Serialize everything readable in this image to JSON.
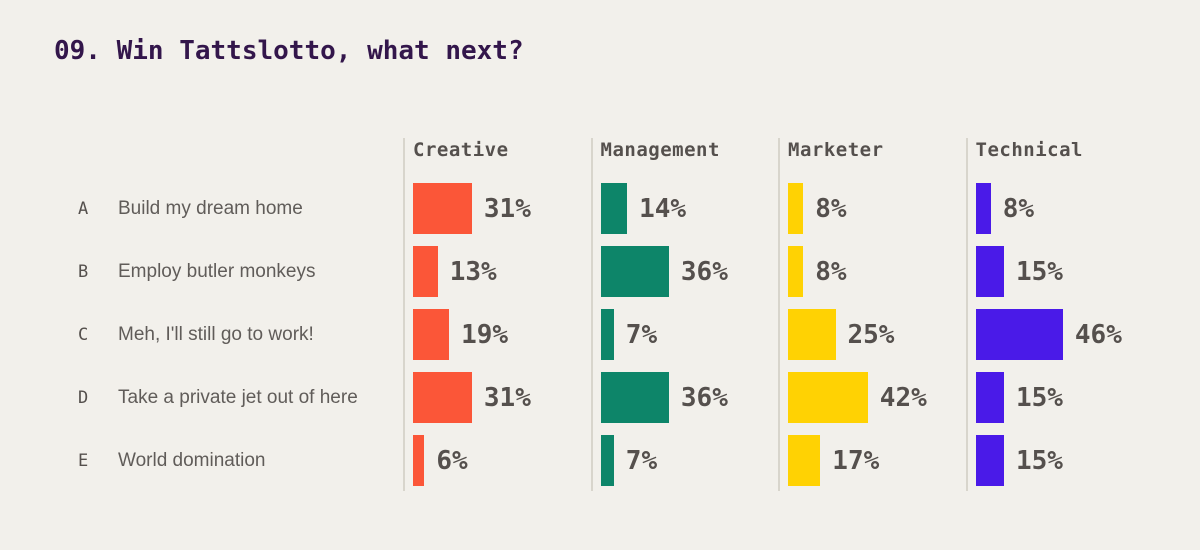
{
  "page": {
    "title": "09. Win Tattslotto, what next?"
  },
  "colors": {
    "background": "#F2F0EB",
    "title_text": "#33164B",
    "header_text": "#55504D",
    "value_text": "#55504D",
    "row_label_text": "#605C59",
    "axis_line": "#D8D5CC",
    "creative": "#FB5638",
    "management": "#0D8569",
    "marketer": "#FFD203",
    "technical": "#4A1AE8"
  },
  "chart_data": {
    "type": "bar",
    "orientation": "horizontal",
    "title": "09. Win Tattslotto, what next?",
    "unit": "%",
    "xlim": [
      0,
      100
    ],
    "grid": false,
    "legend_position": "column-headers",
    "category_keys": [
      "A",
      "B",
      "C",
      "D",
      "E"
    ],
    "categories": [
      "Build my dream home",
      "Employ butler monkeys",
      "Meh, I'll still go to work!",
      "Take a private jet out of here",
      "World domination"
    ],
    "series": [
      {
        "name": "Creative",
        "color": "#FB5638",
        "values": [
          31,
          13,
          19,
          31,
          6
        ]
      },
      {
        "name": "Management",
        "color": "#0D8569",
        "values": [
          14,
          36,
          7,
          36,
          7
        ]
      },
      {
        "name": "Marketer",
        "color": "#FFD203",
        "values": [
          8,
          8,
          25,
          42,
          17
        ]
      },
      {
        "name": "Technical",
        "color": "#4A1AE8",
        "values": [
          8,
          15,
          46,
          15,
          15
        ]
      }
    ]
  }
}
